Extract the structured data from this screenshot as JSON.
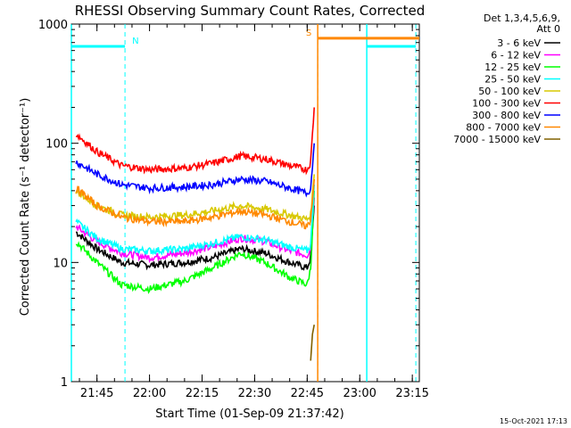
{
  "chart_data": {
    "type": "line",
    "title": "RHESSI Observing Summary Count Rates, Corrected",
    "xlabel": "Start Time (01-Sep-09 21:37:42)",
    "ylabel": "Corrected Count Rate (s⁻¹ detector⁻¹)",
    "yscale": "log",
    "ylim": [
      1,
      1000
    ],
    "xlim": [
      "21:37:42",
      "23:17:00"
    ],
    "xtick_labels": [
      "21:45",
      "22:00",
      "22:15",
      "22:30",
      "22:45",
      "23:00",
      "23:15"
    ],
    "ytick_labels": [
      "1",
      "10",
      "100",
      "1000"
    ],
    "legend": {
      "position": "right",
      "header": [
        "Det 1,3,4,5,6,9,",
        "Att 0"
      ],
      "entries": [
        {
          "label": "3 - 6 keV",
          "color": "#000000"
        },
        {
          "label": "6 - 12 keV",
          "color": "#ff00ff"
        },
        {
          "label": "12 - 25 keV",
          "color": "#00ff00"
        },
        {
          "label": "25 - 50 keV",
          "color": "#00ffff"
        },
        {
          "label": "50 - 100 keV",
          "color": "#d8c800"
        },
        {
          "label": "100 - 300 keV",
          "color": "#ff0000"
        },
        {
          "label": "300 - 800 keV",
          "color": "#0000ff"
        },
        {
          "label": "800 - 7000 keV",
          "color": "#ff8800"
        },
        {
          "label": "7000 - 15000 keV",
          "color": "#806000"
        }
      ]
    },
    "series": [
      {
        "name": "3 - 6 keV",
        "times": [
          "21:39",
          "21:45",
          "21:52",
          "22:00",
          "22:10",
          "22:18",
          "22:26",
          "22:33",
          "22:40",
          "22:45",
          "22:46",
          "22:47"
        ],
        "values": [
          18,
          13,
          10,
          9.5,
          10,
          11,
          13,
          12,
          10,
          9,
          11,
          30
        ]
      },
      {
        "name": "6 - 12 keV",
        "times": [
          "21:39",
          "21:45",
          "21:52",
          "22:00",
          "22:10",
          "22:18",
          "22:26",
          "22:33",
          "22:40",
          "22:45",
          "22:46",
          "22:47"
        ],
        "values": [
          20,
          15,
          12,
          11,
          12,
          13.5,
          16,
          15,
          12.5,
          11.5,
          13,
          35
        ]
      },
      {
        "name": "12 - 25 keV",
        "times": [
          "21:39",
          "21:45",
          "21:52",
          "22:00",
          "22:10",
          "22:18",
          "22:26",
          "22:33",
          "22:40",
          "22:45",
          "22:46",
          "22:47"
        ],
        "values": [
          15,
          10,
          6.5,
          6,
          7,
          9,
          12,
          10,
          7.5,
          6.5,
          9,
          40
        ]
      },
      {
        "name": "25 - 50 keV",
        "times": [
          "21:39",
          "21:45",
          "21:52",
          "22:00",
          "22:10",
          "22:18",
          "22:26",
          "22:33",
          "22:40",
          "22:45",
          "22:46",
          "22:47"
        ],
        "values": [
          22,
          16,
          13,
          12.5,
          13,
          14.5,
          16.5,
          15.5,
          13.5,
          12.5,
          14,
          45
        ]
      },
      {
        "name": "50 - 100 keV",
        "times": [
          "21:39",
          "21:45",
          "21:52",
          "22:00",
          "22:10",
          "22:18",
          "22:26",
          "22:33",
          "22:40",
          "22:45",
          "22:46",
          "22:47"
        ],
        "values": [
          40,
          30,
          25,
          24,
          25,
          27,
          30,
          28,
          25,
          23,
          25,
          55
        ]
      },
      {
        "name": "100 - 300 keV",
        "times": [
          "21:39",
          "21:45",
          "21:52",
          "22:00",
          "22:10",
          "22:18",
          "22:26",
          "22:33",
          "22:40",
          "22:45",
          "22:46",
          "22:47"
        ],
        "values": [
          120,
          85,
          65,
          60,
          62,
          68,
          78,
          74,
          65,
          60,
          70,
          200
        ]
      },
      {
        "name": "300 - 800 keV",
        "times": [
          "21:39",
          "21:45",
          "21:52",
          "22:00",
          "22:10",
          "22:18",
          "22:26",
          "22:33",
          "22:40",
          "22:45",
          "22:46",
          "22:47"
        ],
        "values": [
          70,
          55,
          45,
          42,
          43,
          45,
          50,
          48,
          42,
          38,
          42,
          100
        ]
      },
      {
        "name": "800 - 7000 keV",
        "times": [
          "21:39",
          "21:45",
          "21:52",
          "22:00",
          "22:10",
          "22:18",
          "22:26",
          "22:33",
          "22:40",
          "22:45",
          "22:46",
          "22:47"
        ],
        "values": [
          42,
          30,
          24,
          22,
          22,
          24,
          27,
          25,
          22,
          20,
          23,
          50
        ]
      },
      {
        "name": "7000 - 15000 keV",
        "times": [
          "22:46",
          "22:46:30",
          "22:47"
        ],
        "values": [
          1.5,
          2.5,
          3
        ]
      }
    ],
    "flag_markers": [
      {
        "label": "N",
        "color": "#00ffff",
        "from": "21:37:42",
        "to": "21:53:00",
        "level": 650,
        "boundary_line": "21:53:00"
      },
      {
        "label": "S",
        "color": "#ff8800",
        "from": "22:48:00",
        "to": "23:17:00",
        "level": 760,
        "boundary_line": "22:48:00"
      },
      {
        "label": "",
        "color": "#00ffff",
        "from": "23:02:00",
        "to": "23:16:00",
        "level": 650,
        "boundary_line": "23:16:00"
      }
    ],
    "vertical_lines": [
      {
        "time": "21:37:42",
        "color": "#00ffff"
      },
      {
        "time": "22:48:00",
        "color": "#ff8800"
      },
      {
        "time": "23:02:00",
        "color": "#00ffff"
      }
    ],
    "grid": false
  },
  "footer": {
    "timestamp": "15-Oct-2021 17:13"
  }
}
